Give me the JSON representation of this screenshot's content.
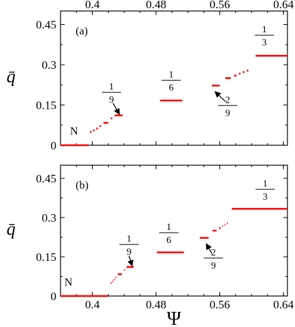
{
  "chart_data": [
    {
      "type": "line",
      "panel_label": "(a)",
      "ylabel": "q̄",
      "xlabel": "",
      "x_ticks": [
        "0.4",
        "0.48",
        "0.56",
        "0.64"
      ],
      "x_tick_values": [
        0.4,
        0.48,
        0.56,
        0.64
      ],
      "x_ticks_position": "top",
      "y_ticks": [
        "0",
        "0.15",
        "0.3",
        "0.45"
      ],
      "y_tick_values": [
        0,
        0.15,
        0.3,
        0.45
      ],
      "xlim": [
        0.36,
        0.645
      ],
      "ylim": [
        0,
        0.5
      ],
      "color": "#ff0000",
      "segments": [
        {
          "x": [
            0.36,
            0.395
          ],
          "y": 0
        },
        {
          "x": [
            0.397,
            0.399
          ],
          "y": 0.05
        },
        {
          "x": [
            0.401,
            0.403
          ],
          "y": 0.0556
        },
        {
          "x": [
            0.405,
            0.407
          ],
          "y": 0.0625
        },
        {
          "x": [
            0.409,
            0.411
          ],
          "y": 0.0714
        },
        {
          "x": [
            0.414,
            0.42
          ],
          "y": 0.0833
        },
        {
          "x": [
            0.423,
            0.425
          ],
          "y": 0.1
        },
        {
          "x": [
            0.428,
            0.438
          ],
          "y": 0.1111
        },
        {
          "x": [
            0.485,
            0.513
          ],
          "y": 0.1667
        },
        {
          "x": [
            0.55,
            0.56
          ],
          "y": 0.2222
        },
        {
          "x": [
            0.567,
            0.574
          ],
          "y": 0.25
        },
        {
          "x": [
            0.578,
            0.581
          ],
          "y": 0.2593
        },
        {
          "x": [
            0.584,
            0.586
          ],
          "y": 0.2667
        },
        {
          "x": [
            0.589,
            0.591
          ],
          "y": 0.2727
        },
        {
          "x": [
            0.594,
            0.596
          ],
          "y": 0.2778
        },
        {
          "x": [
            0.605,
            0.645
          ],
          "y": 0.3333
        }
      ],
      "annotations": [
        {
          "type": "text",
          "text": "N",
          "x": 0.377,
          "y": 0.04
        },
        {
          "type": "fraction",
          "num": "1",
          "den": "9",
          "x": 0.424,
          "y": 0.197,
          "arrow_to": [
            0.434,
            0.115
          ],
          "arrow_from": [
            0.426,
            0.157
          ]
        },
        {
          "type": "fraction",
          "num": "1",
          "den": "6",
          "x": 0.499,
          "y": 0.242
        },
        {
          "type": "fraction",
          "num": "2",
          "den": "9",
          "x": 0.57,
          "y": 0.148,
          "arrow_to": [
            0.554,
            0.2
          ],
          "arrow_from": [
            0.567,
            0.163
          ]
        },
        {
          "type": "fraction",
          "num": "1",
          "den": "3",
          "x": 0.616,
          "y": 0.41
        }
      ]
    },
    {
      "type": "line",
      "panel_label": "(b)",
      "ylabel": "q̄",
      "xlabel": "Ψ",
      "x_ticks": [
        "0.4",
        "0.48",
        "0.56",
        "0.64"
      ],
      "x_tick_values": [
        0.4,
        0.48,
        0.56,
        0.64
      ],
      "x_ticks_position": "bottom",
      "y_ticks": [
        "0",
        "0.15",
        "0.3",
        "0.45"
      ],
      "y_tick_values": [
        0,
        0.15,
        0.3,
        0.45
      ],
      "xlim": [
        0.36,
        0.645
      ],
      "ylim": [
        0,
        0.5
      ],
      "color": "#ff0000",
      "segments": [
        {
          "x": [
            0.36,
            0.42
          ],
          "y": 0
        },
        {
          "x": [
            0.423,
            0.424
          ],
          "y": 0.05
        },
        {
          "x": [
            0.425,
            0.426
          ],
          "y": 0.0556
        },
        {
          "x": [
            0.427,
            0.428
          ],
          "y": 0.0625
        },
        {
          "x": [
            0.429,
            0.43
          ],
          "y": 0.0714
        },
        {
          "x": [
            0.432,
            0.437
          ],
          "y": 0.0833
        },
        {
          "x": [
            0.44,
            0.441
          ],
          "y": 0.1
        },
        {
          "x": [
            0.443,
            0.452
          ],
          "y": 0.1111
        },
        {
          "x": [
            0.481,
            0.515
          ],
          "y": 0.1667
        },
        {
          "x": [
            0.535,
            0.546
          ],
          "y": 0.2222
        },
        {
          "x": [
            0.551,
            0.556
          ],
          "y": 0.25
        },
        {
          "x": [
            0.559,
            0.561
          ],
          "y": 0.2593
        },
        {
          "x": [
            0.563,
            0.564
          ],
          "y": 0.2667
        },
        {
          "x": [
            0.566,
            0.567
          ],
          "y": 0.2727
        },
        {
          "x": [
            0.569,
            0.57
          ],
          "y": 0.2778
        },
        {
          "x": [
            0.575,
            0.645
          ],
          "y": 0.3333
        }
      ],
      "annotations": [
        {
          "type": "text",
          "text": "N",
          "x": 0.37,
          "y": 0.04
        },
        {
          "type": "fraction",
          "num": "1",
          "den": "9",
          "x": 0.446,
          "y": 0.197,
          "arrow_to": [
            0.45,
            0.115
          ],
          "arrow_from": [
            0.446,
            0.154
          ]
        },
        {
          "type": "fraction",
          "num": "1",
          "den": "6",
          "x": 0.496,
          "y": 0.242
        },
        {
          "type": "fraction",
          "num": "2",
          "den": "9",
          "x": 0.552,
          "y": 0.145,
          "arrow_to": [
            0.543,
            0.2
          ],
          "arrow_from": [
            0.55,
            0.163
          ]
        },
        {
          "type": "fraction",
          "num": "1",
          "den": "3",
          "x": 0.617,
          "y": 0.408
        }
      ]
    }
  ]
}
